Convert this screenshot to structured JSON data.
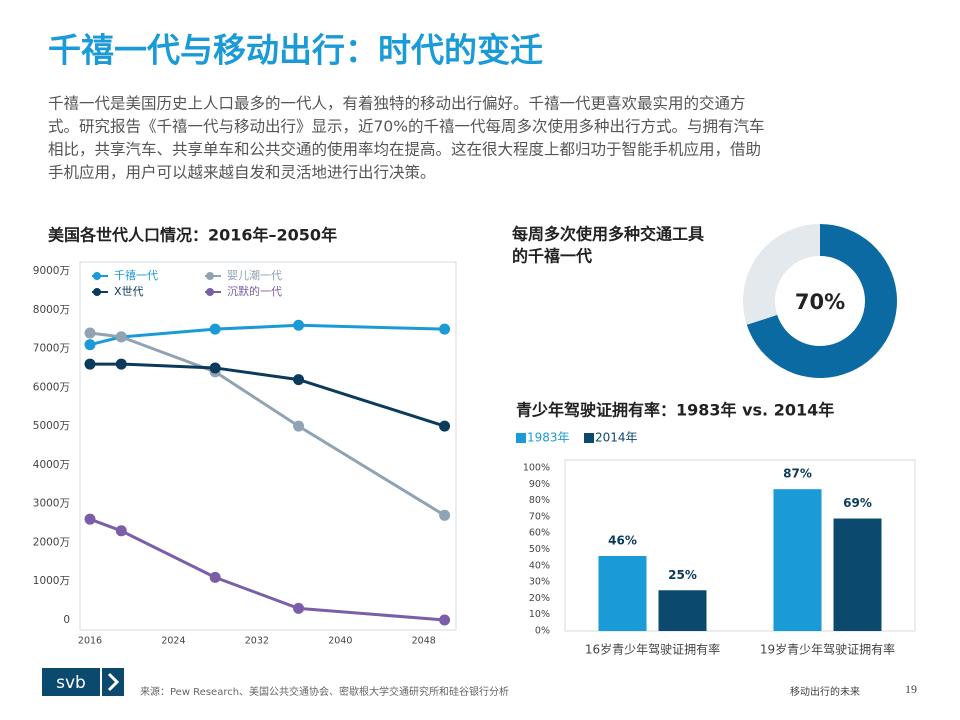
{
  "header": {
    "title": "千禧一代与移动出行：时代的变迁",
    "intro": [
      "千禧一代是美国历史上人口最多的一代人，有着独特的移动出行偏好。千禧一代更喜欢最实用的交通方",
      "式。研究报告《千禧一代与移动出行》显示，近70%的千禧一代每周多次使用多种出行方式。与拥有汽车",
      "相比，共享汽车、共享单车和公共交通的使用率均在提高。这在很大程度上都归功于智能手机应用，借助",
      "手机应用，用户可以越来越自发和灵活地进行出行决策。"
    ]
  },
  "chart_data": [
    {
      "type": "line",
      "title": "美国各世代人口情况：2016年–2050年",
      "x": [
        2016,
        2019,
        2028,
        2036,
        2050
      ],
      "series": [
        {
          "name": "千禧一代",
          "color": "#1a9ad6",
          "values": [
            7100,
            7300,
            7500,
            7600,
            7500
          ]
        },
        {
          "name": "婴儿潮一代",
          "color": "#8fa3b3",
          "values": [
            7400,
            7300,
            6400,
            5000,
            2700
          ]
        },
        {
          "name": "X世代",
          "color": "#0b3a5c",
          "values": [
            6600,
            6600,
            6500,
            6200,
            5000
          ]
        },
        {
          "name": "沉默的一代",
          "color": "#7b5ea8",
          "values": [
            2600,
            2300,
            1100,
            300,
            0
          ]
        }
      ],
      "xlim": [
        2016,
        2051
      ],
      "xticks": [
        2016,
        2024,
        2032,
        2040,
        2048
      ],
      "ylim": [
        0,
        9000
      ],
      "yticks": [
        0,
        {
          "value": 1000,
          "label": "1000万"
        },
        {
          "value": 2000,
          "label": "2000万"
        },
        {
          "value": 3000,
          "label": "3000万"
        },
        {
          "value": 4000,
          "label": "4000万"
        },
        {
          "value": 5000,
          "label": "5000万"
        },
        {
          "value": 6000,
          "label": "6000万"
        },
        {
          "value": 7000,
          "label": "7000万"
        },
        {
          "value": 8000,
          "label": "8000万"
        },
        {
          "value": 9000,
          "label": "9000万"
        }
      ],
      "grid": false,
      "legend": "top-left"
    },
    {
      "type": "pie",
      "title": [
        "每周多次使用多种交通工具",
        "的千禧一代"
      ],
      "values": [
        70,
        30
      ],
      "value_labels": [
        "70%",
        null
      ],
      "colors": [
        "#0a6aa1",
        "#e4e9ee"
      ],
      "donut": true
    },
    {
      "type": "bar",
      "title": "青少年驾驶证拥有率：1983年 vs. 2014年",
      "categories": [
        "16岁青少年驾驶证拥有率",
        "19岁青少年驾驶证拥有率"
      ],
      "series": [
        {
          "name": "1983年",
          "color": "#1a9ad6",
          "values": [
            46,
            87
          ],
          "value_labels": [
            "46%",
            "87%"
          ]
        },
        {
          "name": "2014年",
          "color": "#0b4a6e",
          "values": [
            25,
            69
          ],
          "value_labels": [
            "25%",
            "69%"
          ]
        }
      ],
      "ylim": [
        0,
        100
      ],
      "yticks": [
        {
          "value": 0,
          "label": "0%"
        },
        {
          "value": 10,
          "label": "10%"
        },
        {
          "value": 20,
          "label": "20%"
        },
        {
          "value": 30,
          "label": "30%"
        },
        {
          "value": 40,
          "label": "40%"
        },
        {
          "value": 50,
          "label": "50%"
        },
        {
          "value": 60,
          "label": "60%"
        },
        {
          "value": 70,
          "label": "70%"
        },
        {
          "value": 80,
          "label": "80%"
        },
        {
          "value": 90,
          "label": "90%"
        },
        {
          "value": 100,
          "label": "100%"
        }
      ],
      "legend": "top-left"
    }
  ],
  "footer": {
    "logo": "svb",
    "source": "来源：Pew Research、美国公共交通协会、密歇根大学交通研究所和硅谷银行分析",
    "section": "移动出行的未来",
    "page": "19"
  }
}
